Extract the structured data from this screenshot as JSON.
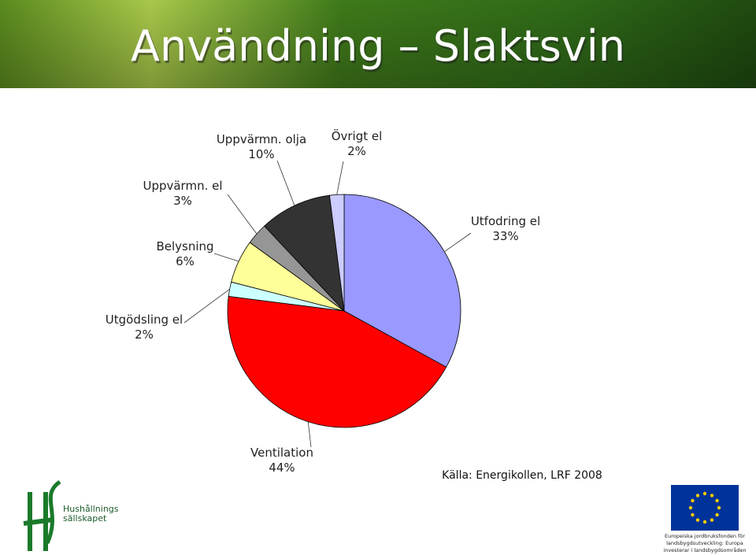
{
  "chart_data": {
    "type": "pie",
    "title": "Användning – Slaktsvin",
    "categories": [
      "Utfodring el",
      "Ventilation",
      "Utgödsling el",
      "Belysning",
      "Uppvärmn. el",
      "Uppvärmn. olja",
      "Övrigt el"
    ],
    "values": [
      33,
      44,
      2,
      6,
      3,
      10,
      2
    ],
    "value_labels": [
      "33%",
      "44%",
      "2%",
      "6%",
      "3%",
      "10%",
      "2%"
    ],
    "colors": [
      "#9999ff",
      "#ff0000",
      "#ccffff",
      "#ffff99",
      "#969696",
      "#333333",
      "#ccccff"
    ],
    "source": "Källa: Energikollen, LRF 2008"
  },
  "logos": {
    "left": [
      "Hushållnings",
      "sällskapet"
    ],
    "right": [
      "Europeiska jordbruksfonden för",
      "landsbygdsutveckling: Europa",
      "investerar i landsbygdsområden"
    ]
  }
}
